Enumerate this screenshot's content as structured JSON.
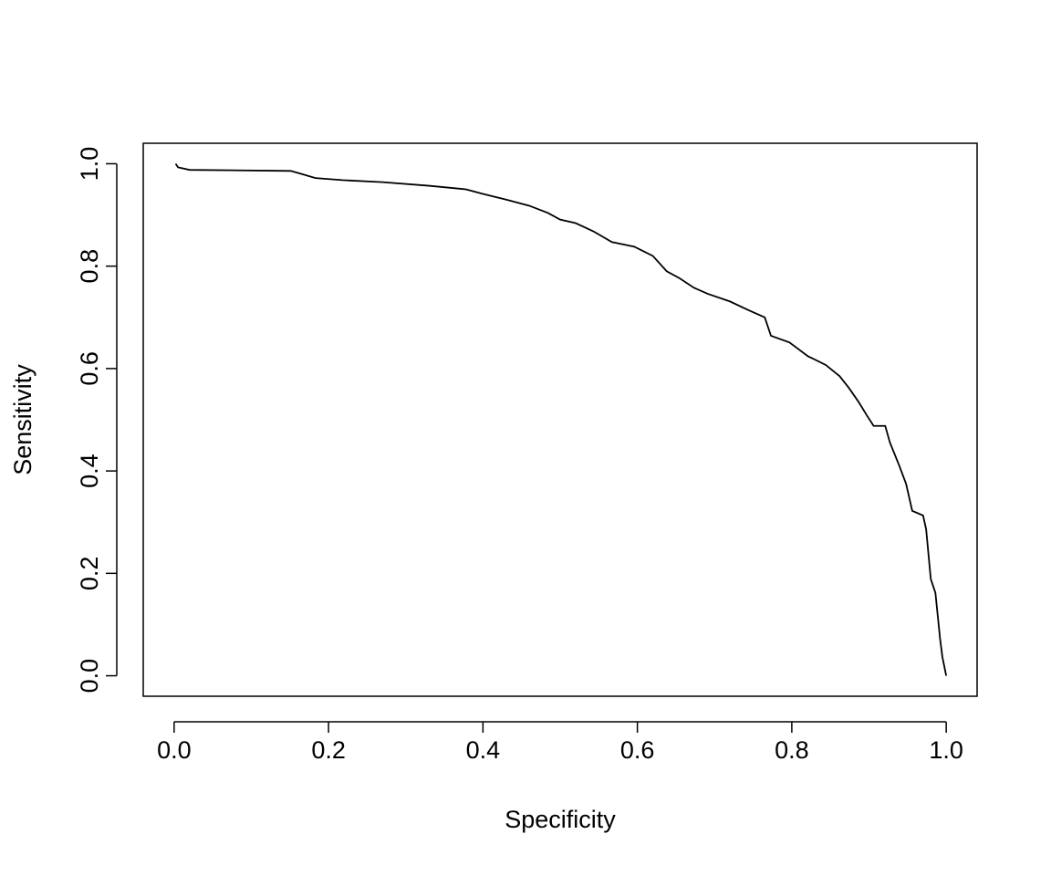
{
  "chart_data": {
    "type": "line",
    "x_label": "Specificity",
    "y_label": "Sensitivity",
    "xlim": [
      -0.04,
      1.04
    ],
    "ylim": [
      -0.04,
      1.04
    ],
    "xticks": [
      {
        "value": 0,
        "label": "0.0"
      },
      0.2,
      0.4,
      0.6,
      0.8,
      {
        "value": 1,
        "label": "1.0"
      }
    ],
    "yticks": [
      {
        "value": 0,
        "label": "0.0"
      },
      0.2,
      0.4,
      0.6,
      0.8,
      {
        "value": 1,
        "label": "1.0"
      }
    ],
    "series": [
      {
        "color": "#000000",
        "x": [
          0.002,
          0.005,
          0.02,
          0.151,
          0.165,
          0.183,
          0.218,
          0.27,
          0.33,
          0.378,
          0.4,
          0.43,
          0.46,
          0.484,
          0.5,
          0.52,
          0.543,
          0.567,
          0.596,
          0.62,
          0.638,
          0.655,
          0.673,
          0.691,
          0.72,
          0.744,
          0.765,
          0.773,
          0.797,
          0.821,
          0.844,
          0.862,
          0.874,
          0.886,
          0.897,
          0.906,
          0.921,
          0.927,
          0.939,
          0.948,
          0.956,
          0.97,
          0.974,
          0.98,
          0.986,
          0.992,
          0.995,
          1.0
        ],
        "values": [
          1.0,
          0.993,
          0.988,
          0.986,
          0.98,
          0.972,
          0.968,
          0.964,
          0.957,
          0.95,
          0.941,
          0.93,
          0.918,
          0.904,
          0.891,
          0.884,
          0.868,
          0.847,
          0.838,
          0.82,
          0.79,
          0.776,
          0.758,
          0.746,
          0.731,
          0.714,
          0.7,
          0.664,
          0.651,
          0.624,
          0.607,
          0.585,
          0.562,
          0.536,
          0.509,
          0.488,
          0.488,
          0.456,
          0.411,
          0.375,
          0.322,
          0.313,
          0.286,
          0.189,
          0.162,
          0.073,
          0.037,
          0.0
        ]
      }
    ]
  }
}
